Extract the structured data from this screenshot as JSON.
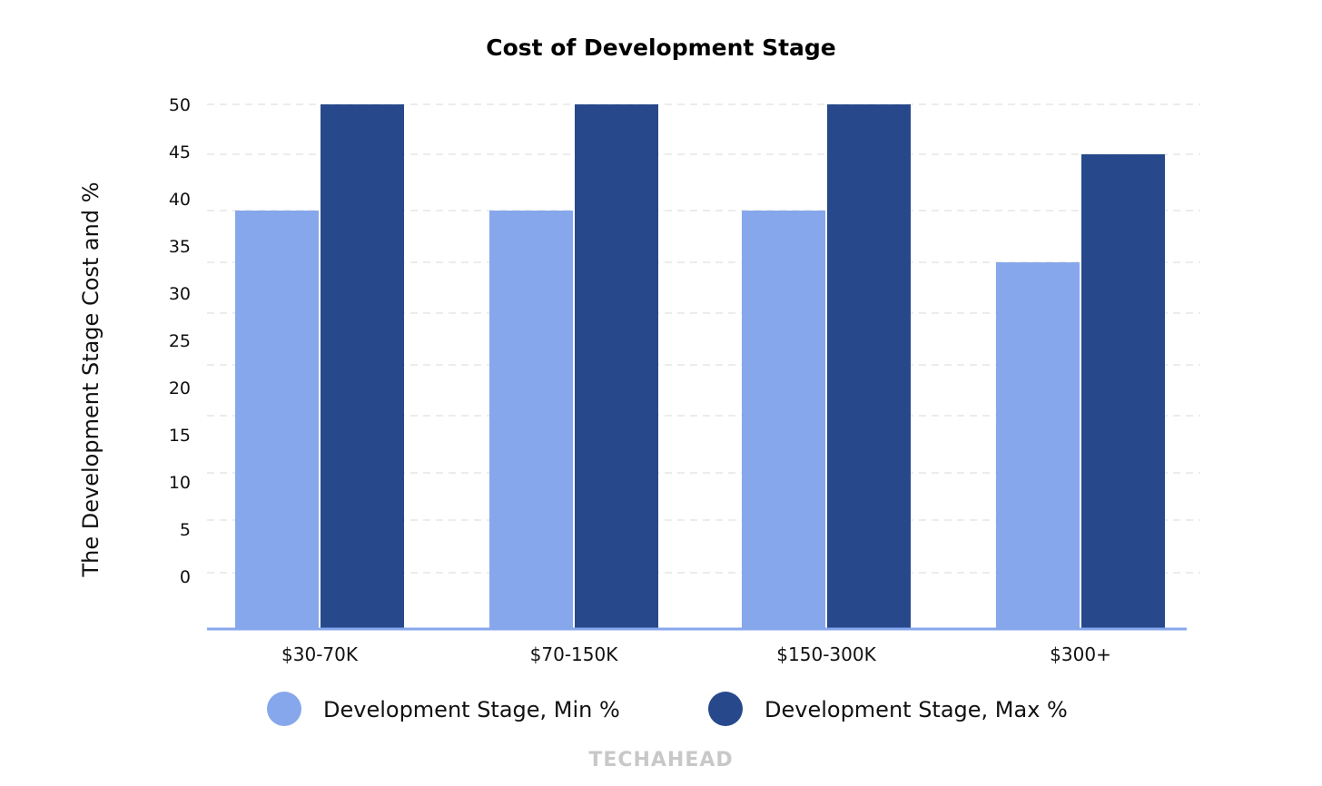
{
  "chart_data": {
    "type": "bar",
    "title": "Cost of Development Stage",
    "xlabel": "",
    "ylabel": "The Development Stage Cost and %",
    "categories": [
      "$30-70K",
      "$70-150K",
      "$150-300K",
      "$300+"
    ],
    "series": [
      {
        "name": "Development Stage, Min %",
        "values": [
          40,
          40,
          40,
          35
        ],
        "color": "#87a7ec"
      },
      {
        "name": "Development Stage, Max %",
        "values": [
          50,
          50,
          50,
          45
        ],
        "color": "#27498c"
      }
    ],
    "yticks": [
      "50",
      "45",
      "40",
      "35",
      "30",
      "25",
      "20",
      "15",
      "10",
      "5",
      "0"
    ],
    "ylim": [
      0,
      50
    ],
    "grid": true,
    "legend_position": "bottom"
  },
  "watermark": "TECHAHEAD"
}
